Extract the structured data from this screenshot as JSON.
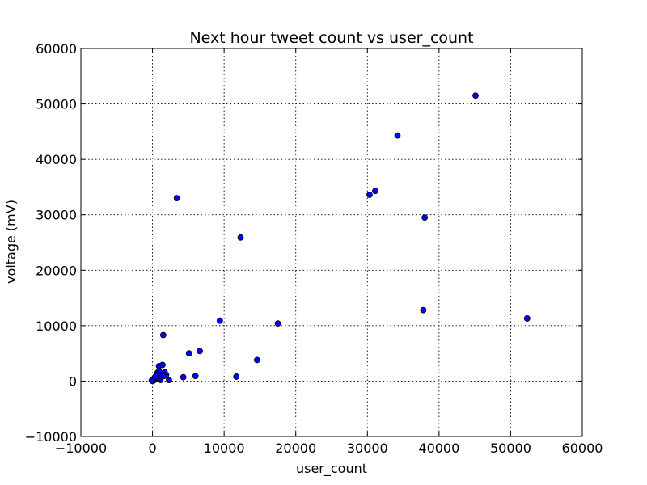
{
  "chart_data": {
    "type": "scatter",
    "title": "Next hour tweet count vs user_count",
    "xlabel": "user_count",
    "ylabel": "voltage (mV)",
    "xlim": [
      -10000,
      60000
    ],
    "ylim": [
      -10000,
      60000
    ],
    "xticks": [
      -10000,
      0,
      10000,
      20000,
      30000,
      40000,
      50000,
      60000
    ],
    "yticks": [
      -10000,
      0,
      10000,
      20000,
      30000,
      40000,
      50000,
      60000
    ],
    "xtick_labels": [
      "−10000",
      "0",
      "10000",
      "20000",
      "30000",
      "40000",
      "50000",
      "60000"
    ],
    "ytick_labels": [
      "−10000",
      "0",
      "10000",
      "20000",
      "30000",
      "40000",
      "50000",
      "60000"
    ],
    "grid": true,
    "marker_color": "#0000ff",
    "points": [
      {
        "x": 45100,
        "y": 51500
      },
      {
        "x": 34200,
        "y": 44300
      },
      {
        "x": 31100,
        "y": 34300
      },
      {
        "x": 30300,
        "y": 33600
      },
      {
        "x": 38000,
        "y": 29500
      },
      {
        "x": 37800,
        "y": 12800
      },
      {
        "x": 52300,
        "y": 11300
      },
      {
        "x": 3400,
        "y": 33000
      },
      {
        "x": 12300,
        "y": 25900
      },
      {
        "x": 17500,
        "y": 10400
      },
      {
        "x": 9400,
        "y": 10900
      },
      {
        "x": 14600,
        "y": 3800
      },
      {
        "x": 11700,
        "y": 800
      },
      {
        "x": 6600,
        "y": 5400
      },
      {
        "x": 5100,
        "y": 5000
      },
      {
        "x": 6000,
        "y": 900
      },
      {
        "x": 4300,
        "y": 700
      },
      {
        "x": 1500,
        "y": 8300
      },
      {
        "x": 2300,
        "y": 200
      },
      {
        "x": 900,
        "y": 2700
      },
      {
        "x": 1400,
        "y": 2900
      },
      {
        "x": 1700,
        "y": 1600
      },
      {
        "x": 1900,
        "y": 1100
      },
      {
        "x": 1200,
        "y": 1300
      },
      {
        "x": 1000,
        "y": 600
      },
      {
        "x": 800,
        "y": 1000
      },
      {
        "x": 700,
        "y": 1500
      },
      {
        "x": 600,
        "y": 400
      },
      {
        "x": 500,
        "y": 900
      },
      {
        "x": 400,
        "y": 300
      },
      {
        "x": 300,
        "y": 600
      },
      {
        "x": 200,
        "y": 200
      },
      {
        "x": 150,
        "y": 100
      },
      {
        "x": 100,
        "y": 300
      },
      {
        "x": 50,
        "y": 50
      },
      {
        "x": 0,
        "y": 0
      },
      {
        "x": -100,
        "y": 100
      },
      {
        "x": 1100,
        "y": 200
      },
      {
        "x": 1300,
        "y": 800
      },
      {
        "x": 900,
        "y": 1800
      },
      {
        "x": 600,
        "y": 1200
      },
      {
        "x": 1600,
        "y": 900
      },
      {
        "x": 400,
        "y": 800
      }
    ]
  }
}
